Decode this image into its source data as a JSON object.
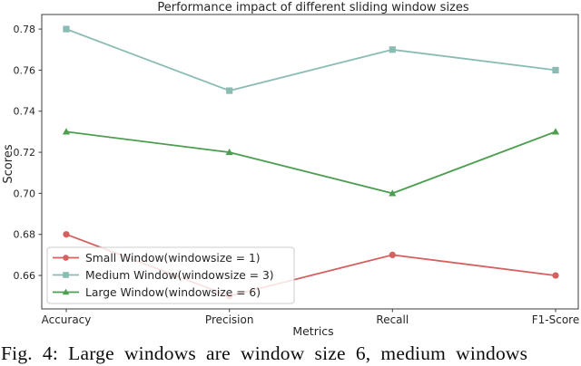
{
  "figure": {
    "caption": "Fig. 4: Large windows are window size 6, medium windows"
  },
  "chart_data": {
    "type": "line",
    "title": "Performance impact of different sliding window sizes",
    "xlabel": "Metrics",
    "ylabel": "Scores",
    "categories": [
      "Accuracy",
      "Precision",
      "Recall",
      "F1-Score"
    ],
    "series": [
      {
        "name": "Small Window(windowsize = 1)",
        "marker": "circle",
        "color": "#d65f5f",
        "values": [
          0.68,
          0.65,
          0.67,
          0.66
        ]
      },
      {
        "name": "Medium Window(windowsize = 3)",
        "marker": "square",
        "color": "#8abcb4",
        "values": [
          0.78,
          0.75,
          0.77,
          0.76
        ]
      },
      {
        "name": "Large Window(windowsize = 6)",
        "marker": "triangle",
        "color": "#4c9e50",
        "values": [
          0.73,
          0.72,
          0.7,
          0.73
        ]
      }
    ],
    "ylim": [
      0.6437,
      0.7871
    ],
    "yticks": [
      0.66,
      0.68,
      0.7,
      0.72,
      0.74,
      0.76,
      0.78
    ],
    "grid": false,
    "legend_position": "lower left",
    "colors": {
      "spine": "#3b3b3b",
      "tick_label": "#262626",
      "legend_border": "#cccccc"
    }
  }
}
